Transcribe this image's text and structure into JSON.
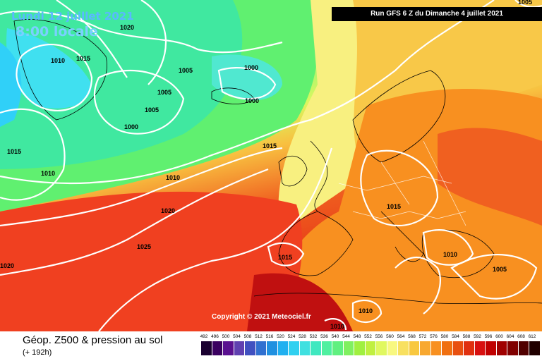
{
  "header": {
    "date": "Lundi 12 juillet 2021",
    "local_time": "8:00 locale",
    "run_info": "Run GFS 6 Z du Dimanche 4 juillet 2021"
  },
  "map": {
    "copyright": "Copyright © 2021 Meteociel.fr",
    "isobar_labels": [
      {
        "text": "1005"
      },
      {
        "text": "1020"
      },
      {
        "text": "1015"
      },
      {
        "text": "1010"
      },
      {
        "text": "1005"
      },
      {
        "text": "1000"
      },
      {
        "text": "1005"
      },
      {
        "text": "1000"
      },
      {
        "text": "1005"
      },
      {
        "text": "1000"
      },
      {
        "text": "1015"
      },
      {
        "text": "1010"
      },
      {
        "text": "1015"
      },
      {
        "text": "1010"
      },
      {
        "text": "1020"
      },
      {
        "text": "1015"
      },
      {
        "text": "1025"
      },
      {
        "text": "1020"
      },
      {
        "text": "1015"
      },
      {
        "text": "1010"
      },
      {
        "text": "1005"
      },
      {
        "text": "1010"
      },
      {
        "text": "1010"
      }
    ]
  },
  "footer": {
    "product": "Géop. Z500 & pression au sol",
    "lead_time": "(+ 192h)",
    "scale_values": [
      "492",
      "496",
      "500",
      "504",
      "508",
      "512",
      "516",
      "520",
      "524",
      "528",
      "532",
      "536",
      "540",
      "544",
      "548",
      "552",
      "556",
      "560",
      "564",
      "568",
      "572",
      "576",
      "580",
      "584",
      "588",
      "592",
      "596",
      "600",
      "604",
      "608",
      "612"
    ],
    "scale_colors": [
      "#1a0030",
      "#3a0060",
      "#5a1090",
      "#6040b0",
      "#4050c0",
      "#3070d0",
      "#2090e0",
      "#20b0f0",
      "#30d0f0",
      "#40e0e0",
      "#40e8c0",
      "#50f0a0",
      "#60f080",
      "#80f060",
      "#a0f040",
      "#c0f040",
      "#e0f860",
      "#f8f880",
      "#f8e060",
      "#f8c840",
      "#f8a830",
      "#f89020",
      "#f07010",
      "#e85010",
      "#e03010",
      "#d81010",
      "#c00000",
      "#a00000",
      "#800000",
      "#500000",
      "#200000"
    ]
  }
}
